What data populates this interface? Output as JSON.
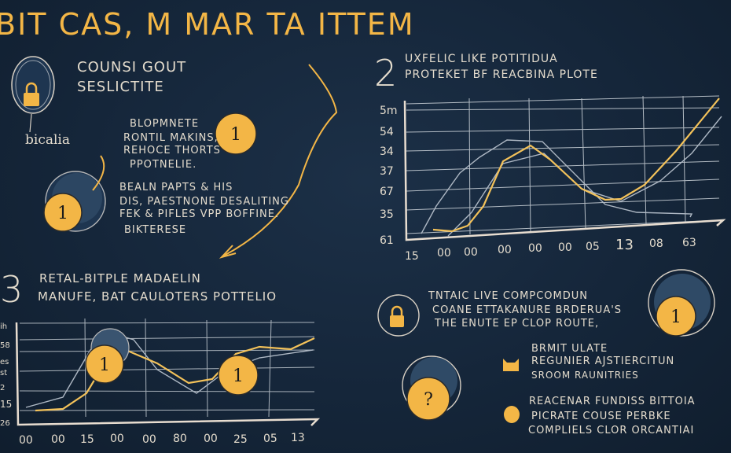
{
  "title": "BIT CAS, M MAR TA ITTEM",
  "colors": {
    "background": "#15263a",
    "accent": "#f3b646",
    "chalk": "#e4dccd"
  },
  "section1": {
    "heading": [
      "COUNSI GOUT",
      "SESLICTITE"
    ],
    "lock_label": "bicalia",
    "icon": "lock-icon",
    "block_a": [
      "BLOPMNETE",
      "RONTIL MAKINS,",
      "REHOCE THORTS",
      "PPOTNELIE."
    ],
    "badge_a": "1",
    "block_b": [
      "BEALN PAPTS & HIS",
      "DIS, PAESTNONE DESALITING",
      "FEK & PIFLES VPP BOFFINE.",
      "BIKTERESE"
    ],
    "badge_b": "1"
  },
  "section2": {
    "number": "2",
    "heading": [
      "UXFELIC LIKE POTITIDUA",
      "PROTEKET BF REACBINA PLOTE"
    ],
    "y_ticks": [
      "5m",
      "54",
      "34",
      "37",
      "67",
      "35",
      "61"
    ],
    "x_ticks": [
      "15",
      "00",
      "00",
      "00",
      "00",
      "00",
      "05",
      "13",
      "08",
      "63"
    ]
  },
  "section3": {
    "number": "3",
    "heading": [
      "RETAL-BITPLE MADAELIN",
      "MANUFE, BAT CAULOTERS POTTELIO"
    ],
    "y_ticks": [
      "ih",
      "58",
      "es",
      "st",
      "2",
      "15",
      "26"
    ],
    "x_ticks": [
      "00",
      "00",
      "15",
      "00",
      "00",
      "80",
      "00",
      "25",
      "05",
      "13"
    ],
    "badges": [
      "1",
      "1"
    ]
  },
  "section4": {
    "block_a": [
      "TNTAIC LIVE COMPCOMDUN",
      "COANE ETTAKANURE BRDERUA'S",
      "THE ENUTE EP CLOP ROUTE,"
    ],
    "badge": "1",
    "block_b": [
      "BRMIT ULATE",
      "REGUNIER AJSTIERCITUN",
      "SROOM RAUNITRIES"
    ],
    "question_badge": "?",
    "block_c": [
      "REACENAR FUNDISS BITTOIA",
      "PICRATE COUSE PERBKE",
      "COMPLIELS CLOR ORCANTIAI"
    ]
  }
}
